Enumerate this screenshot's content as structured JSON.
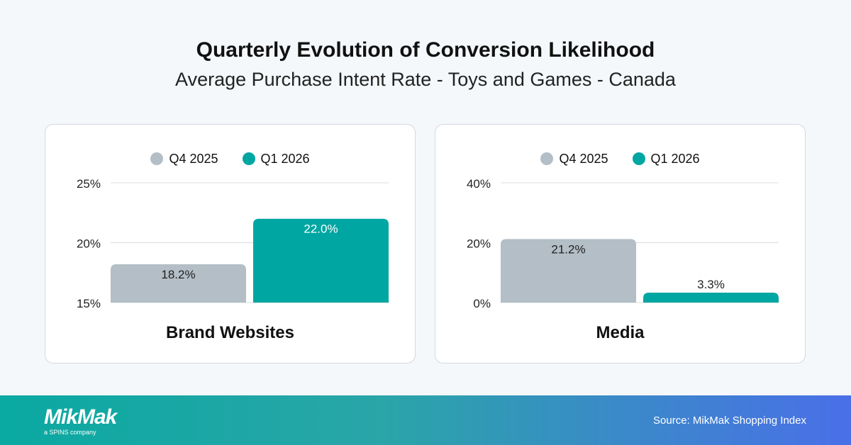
{
  "title": "Quarterly Evolution of Conversion Likelihood",
  "subtitle": "Average Purchase Intent Rate - Toys and Games - Canada",
  "colors": {
    "Q4 2025": "#b3bec6",
    "Q1 2026": "#00a6a2"
  },
  "chart_data": [
    {
      "type": "bar",
      "title": "Brand Websites",
      "categories": [
        "Q4 2025",
        "Q1 2026"
      ],
      "values": [
        18.2,
        22.0
      ],
      "labels": [
        "18.2%",
        "22.0%"
      ],
      "yticks": [
        "15%",
        "20%",
        "25%"
      ],
      "ylim": [
        15,
        25
      ],
      "tick_values": [
        15,
        20,
        25
      ],
      "legend": [
        "Q4 2025",
        "Q1 2026"
      ],
      "legend_position": "top",
      "grid": true
    },
    {
      "type": "bar",
      "title": "Media",
      "categories": [
        "Q4 2025",
        "Q1 2026"
      ],
      "values": [
        21.2,
        3.3
      ],
      "labels": [
        "21.2%",
        "3.3%"
      ],
      "yticks": [
        "0%",
        "20%",
        "40%"
      ],
      "ylim": [
        0,
        40
      ],
      "tick_values": [
        0,
        20,
        40
      ],
      "legend": [
        "Q4 2025",
        "Q1 2026"
      ],
      "legend_position": "top",
      "grid": true
    }
  ],
  "footer": {
    "logo": "MikMak",
    "logo_sub": "a SPINS company",
    "source": "Source: MikMak Shopping Index"
  }
}
